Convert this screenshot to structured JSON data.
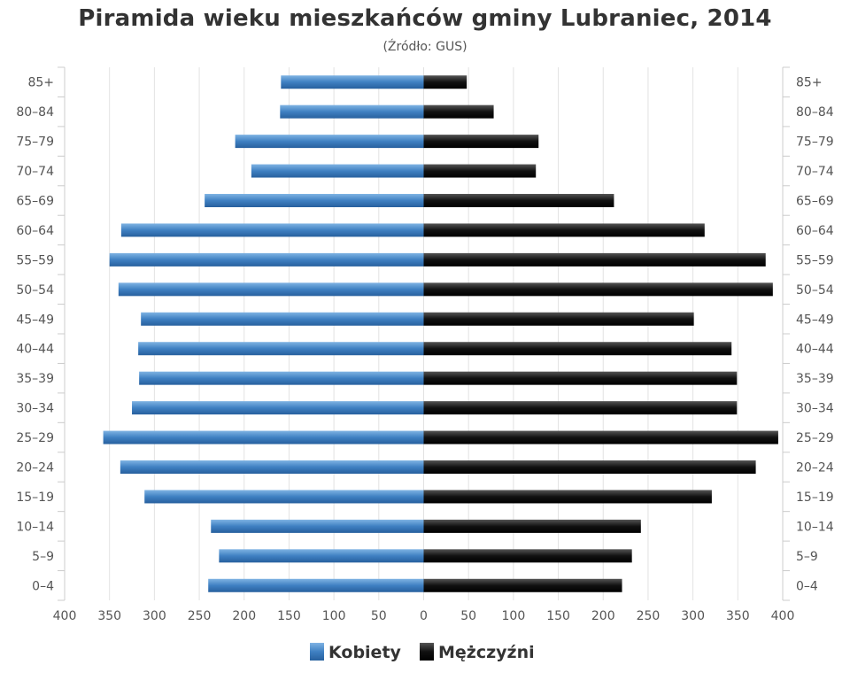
{
  "chart_data": {
    "type": "bar",
    "orientation": "horizontal",
    "title": "Piramida wieku mieszkańców gminy Lubraniec, 2014",
    "subtitle": "(Źródło: GUS)",
    "categories": [
      "85+",
      "80–84",
      "75–79",
      "70–74",
      "65–69",
      "60–64",
      "55–59",
      "50–54",
      "45–49",
      "40–44",
      "35–39",
      "30–34",
      "25–29",
      "20–24",
      "15–19",
      "10–14",
      "5–9",
      "0–4"
    ],
    "series": [
      {
        "name": "Kobiety",
        "color": "#4a8ac9",
        "values": [
          159,
          160,
          210,
          192,
          244,
          337,
          350,
          340,
          315,
          318,
          317,
          325,
          357,
          338,
          311,
          237,
          228,
          240
        ]
      },
      {
        "name": "Mężczyźni",
        "color": "#1a1a1a",
        "values": [
          48,
          78,
          128,
          125,
          212,
          313,
          381,
          389,
          301,
          343,
          349,
          349,
          395,
          370,
          321,
          242,
          232,
          221
        ]
      }
    ],
    "xlim": [
      -400,
      400
    ],
    "x_ticks": [
      -400,
      -350,
      -300,
      -250,
      -200,
      -150,
      -100,
      -50,
      0,
      50,
      100,
      150,
      200,
      250,
      300,
      350,
      400
    ],
    "x_tick_labels": [
      "400",
      "350",
      "300",
      "250",
      "200",
      "150",
      "100",
      "50",
      "0",
      "50",
      "100",
      "150",
      "200",
      "250",
      "300",
      "350",
      "400"
    ],
    "grid": true,
    "legend_position": "bottom-center"
  }
}
